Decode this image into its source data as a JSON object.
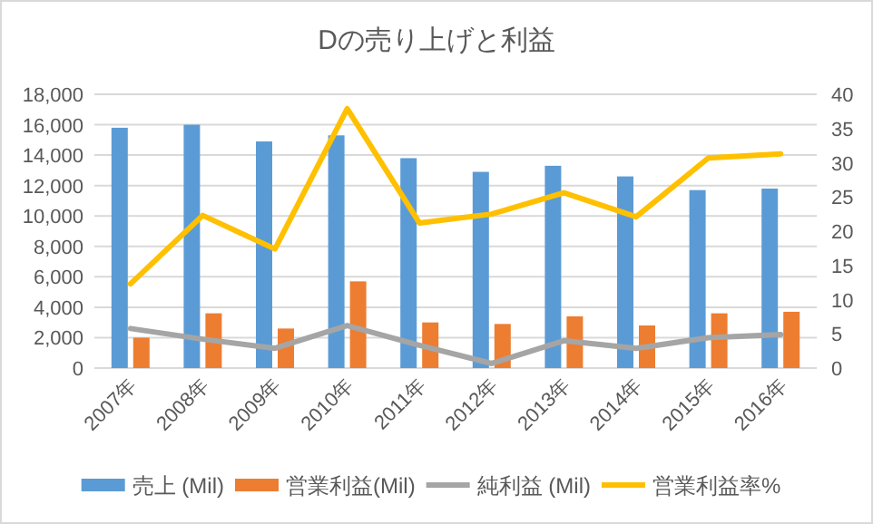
{
  "chart_data": {
    "type": "bar",
    "title": "Dの売り上げと利益",
    "categories": [
      "2007年",
      "2008年",
      "2009年",
      "2010年",
      "2011年",
      "2012年",
      "2013年",
      "2014年",
      "2015年",
      "2016年"
    ],
    "series": [
      {
        "name": "売上 (Mil)",
        "color": "#5b9bd5",
        "values": [
          15800,
          16000,
          14900,
          15300,
          13800,
          12900,
          13300,
          12600,
          11700,
          11800
        ]
      },
      {
        "name": "営業利益(Mil)",
        "color": "#ed7d31",
        "values": [
          2000,
          3600,
          2600,
          5700,
          3000,
          2900,
          3400,
          2800,
          3600,
          3700
        ]
      },
      {
        "name": "純利益 (Mil)",
        "type": "line",
        "color": "#a5a5a5",
        "values": [
          2600,
          1900,
          1300,
          2800,
          1500,
          300,
          1800,
          1300,
          2000,
          2200
        ]
      },
      {
        "name": "営業利益率%",
        "type": "line",
        "axis": "y2",
        "color": "#ffc000",
        "values": [
          12.3,
          22.3,
          17.4,
          37.9,
          21.2,
          22.5,
          25.6,
          22.1,
          30.7,
          31.3
        ]
      }
    ],
    "ylim": [
      0,
      18000
    ],
    "yticks": [
      {
        "value": 0,
        "label": "0"
      },
      {
        "value": 2000,
        "label": "2,000"
      },
      {
        "value": 4000,
        "label": "4,000"
      },
      {
        "value": 6000,
        "label": "6,000"
      },
      {
        "value": 8000,
        "label": "8,000"
      },
      {
        "value": 10000,
        "label": "10,000"
      },
      {
        "value": 12000,
        "label": "12,000"
      },
      {
        "value": 14000,
        "label": "14,000"
      },
      {
        "value": 16000,
        "label": "16,000"
      },
      {
        "value": 18000,
        "label": "18,000"
      }
    ],
    "y2lim": [
      0,
      40
    ],
    "y2ticks": [
      0,
      5,
      10,
      15,
      20,
      25,
      30,
      35,
      40
    ],
    "grid": "y",
    "legend": "bottom"
  }
}
